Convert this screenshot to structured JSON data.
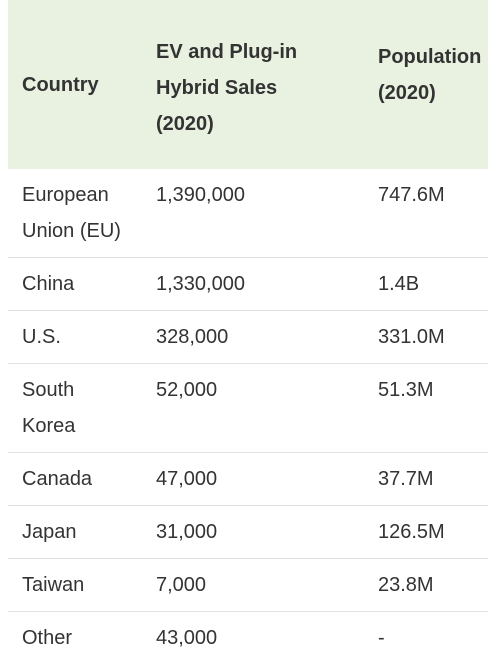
{
  "table": {
    "headers": {
      "country": "Country",
      "ev_sales": [
        "EV and Plug-in",
        "Hybrid Sales",
        "(2020)"
      ],
      "population": [
        "Population",
        "(2020)"
      ]
    },
    "rows": [
      {
        "country": [
          "European",
          "Union (EU)"
        ],
        "ev_sales": "1,390,000",
        "population": "747.6M"
      },
      {
        "country": [
          "China"
        ],
        "ev_sales": "1,330,000",
        "population": "1.4B"
      },
      {
        "country": [
          "U.S."
        ],
        "ev_sales": "328,000",
        "population": "331.0M"
      },
      {
        "country": [
          "South",
          "Korea"
        ],
        "ev_sales": "52,000",
        "population": "51.3M"
      },
      {
        "country": [
          "Canada"
        ],
        "ev_sales": "47,000",
        "population": "37.7M"
      },
      {
        "country": [
          "Japan"
        ],
        "ev_sales": "31,000",
        "population": "126.5M"
      },
      {
        "country": [
          "Taiwan"
        ],
        "ev_sales": "7,000",
        "population": "23.8M"
      },
      {
        "country": [
          "Other"
        ],
        "ev_sales": "43,000",
        "population": "-"
      }
    ]
  },
  "colors": {
    "header_background": "#e9f1e0",
    "row_divider": "#e2e2e2",
    "text": "#333333"
  }
}
